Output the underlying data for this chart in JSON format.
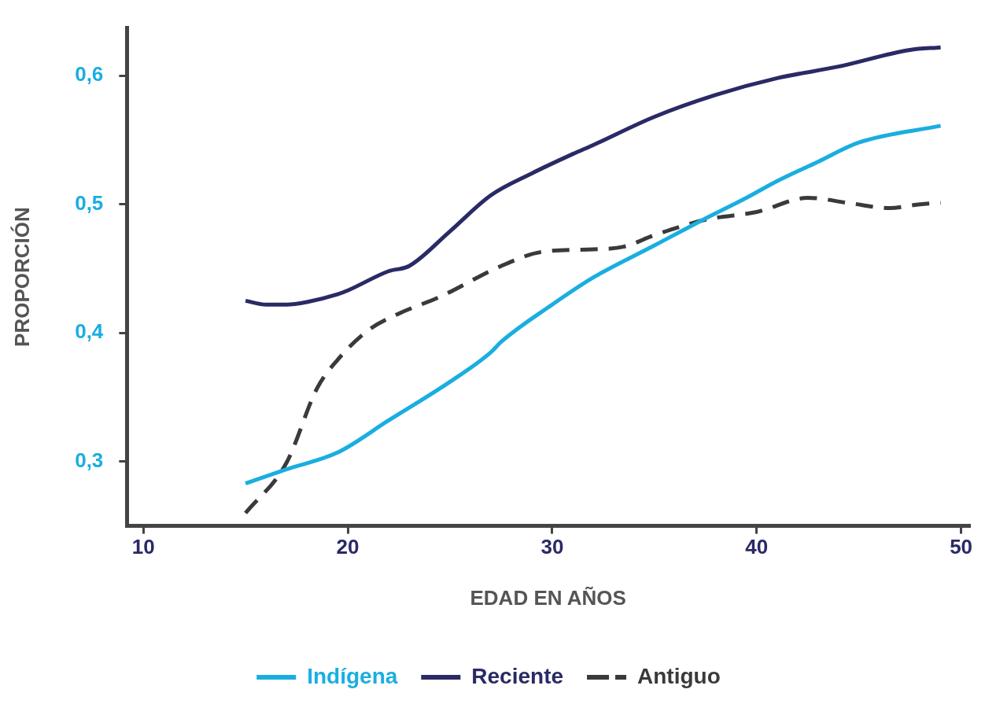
{
  "chart_data": {
    "type": "line",
    "xlabel": "EDAD EN AÑOS",
    "ylabel": "PROPORCIÓN",
    "xlim": [
      9.2,
      50.4
    ],
    "ylim": [
      0.25,
      0.637
    ],
    "xticks": [
      10,
      20,
      30,
      40,
      50
    ],
    "yticks": [
      {
        "value": 0.3,
        "label": "0,3"
      },
      {
        "value": 0.4,
        "label": "0,4"
      },
      {
        "value": 0.5,
        "label": "0,5"
      },
      {
        "value": 0.6,
        "label": "0,6"
      }
    ],
    "grid": false,
    "legend": "bottom",
    "marker": "none",
    "series": [
      {
        "name": "Indígena",
        "color": "#1aaee0",
        "line_style": "solid",
        "x": [
          15,
          17,
          19.5,
          22,
          25,
          27,
          27.5,
          30,
          32,
          35,
          37.5,
          39.5,
          41,
          43,
          45,
          49
        ],
        "values": [
          0.283,
          0.294,
          0.307,
          0.332,
          0.362,
          0.385,
          0.393,
          0.422,
          0.443,
          0.468,
          0.489,
          0.505,
          0.518,
          0.533,
          0.548,
          0.561
        ]
      },
      {
        "name": "Reciente",
        "color": "#2a2a66",
        "line_style": "solid",
        "x": [
          15,
          16,
          17,
          18,
          19.5,
          20,
          22,
          23,
          25,
          27,
          29,
          31,
          32,
          35,
          38,
          41,
          44,
          47.5,
          49
        ],
        "values": [
          0.425,
          0.422,
          0.422,
          0.424,
          0.43,
          0.433,
          0.448,
          0.452,
          0.479,
          0.507,
          0.524,
          0.539,
          0.546,
          0.568,
          0.585,
          0.598,
          0.607,
          0.62,
          0.622
        ]
      },
      {
        "name": "Antiguo",
        "color": "#3a3a3a",
        "line_style": "dashed",
        "x": [
          15,
          17,
          18.5,
          19.5,
          21,
          22.5,
          24.5,
          27.5,
          29.5,
          32,
          33.5,
          35,
          37.5,
          40,
          42.5,
          44.5,
          46.5,
          48,
          49
        ],
        "values": [
          0.26,
          0.299,
          0.357,
          0.379,
          0.402,
          0.415,
          0.428,
          0.452,
          0.463,
          0.465,
          0.467,
          0.476,
          0.488,
          0.494,
          0.505,
          0.501,
          0.497,
          0.5,
          0.501
        ]
      }
    ]
  }
}
